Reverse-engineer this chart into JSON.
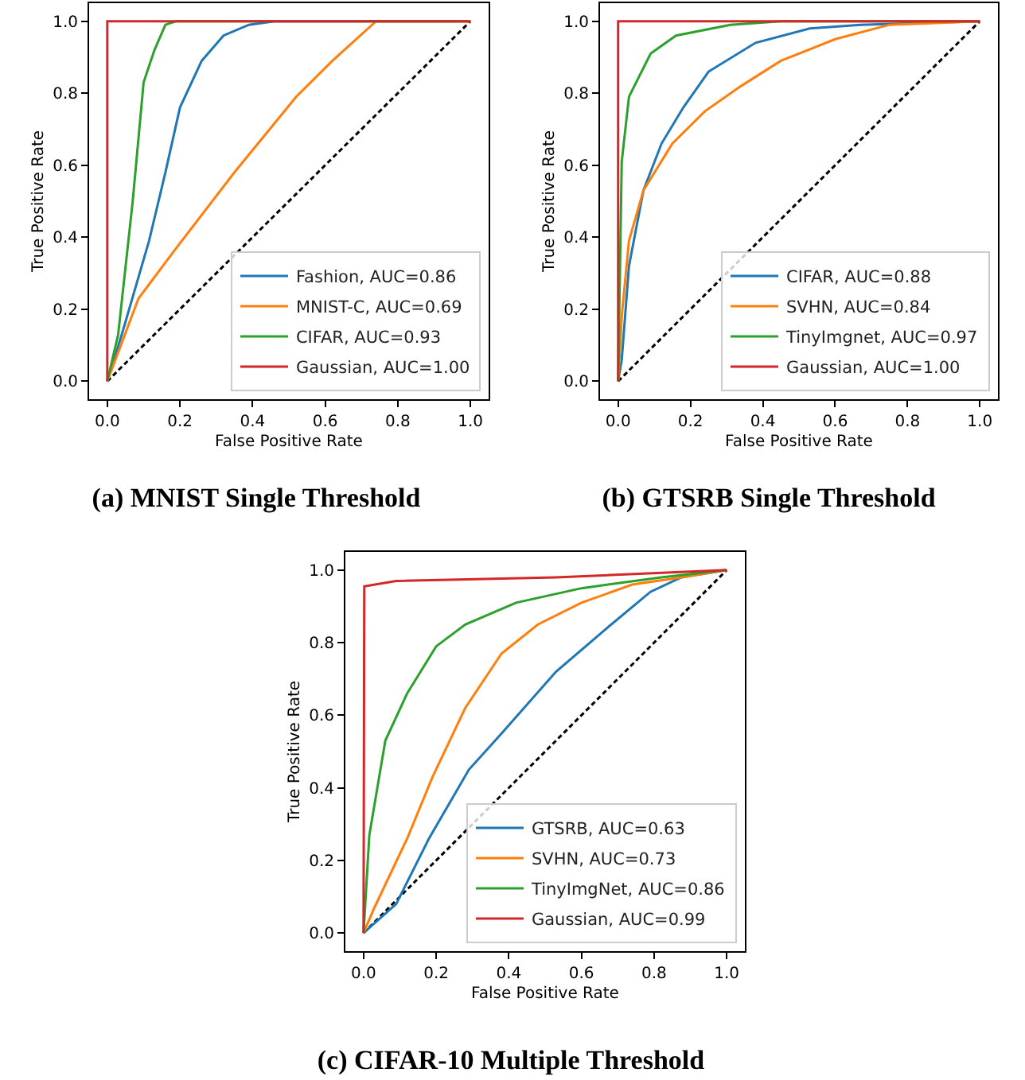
{
  "chart_data": [
    {
      "type": "line",
      "title": "(a) MNIST Single Threshold",
      "xlabel": "False Positive Rate",
      "ylabel": "True Positive Rate",
      "xlim": [
        -0.05,
        1.05
      ],
      "ylim": [
        -0.05,
        1.05
      ],
      "xticks": [
        {
          "value": 0,
          "label": "0.0"
        },
        {
          "value": 0.2,
          "label": "0.2"
        },
        {
          "value": 0.4,
          "label": "0.4"
        },
        {
          "value": 0.6,
          "label": "0.6"
        },
        {
          "value": 0.8,
          "label": "0.8"
        },
        {
          "value": 1,
          "label": "1.0"
        }
      ],
      "yticks": [
        {
          "value": 0,
          "label": "0.0"
        },
        {
          "value": 0.2,
          "label": "0.2"
        },
        {
          "value": 0.4,
          "label": "0.4"
        },
        {
          "value": 0.6,
          "label": "0.6"
        },
        {
          "value": 0.8,
          "label": "0.8"
        },
        {
          "value": 1,
          "label": "1.0"
        }
      ],
      "grid": false,
      "legend": "bottom right",
      "line_style": "solid",
      "marker": "none",
      "series": [
        {
          "color": "#000000",
          "line_style": "dashed",
          "x": [
            0,
            1
          ],
          "values": [
            0,
            1
          ]
        },
        {
          "name": "Fashion, AUC=0.86",
          "color": "#1f77b4",
          "x": [
            0,
            0.04,
            0.115,
            0.16,
            0.2,
            0.26,
            0.32,
            0.39,
            0.46,
            1
          ],
          "values": [
            0,
            0.13,
            0.39,
            0.58,
            0.76,
            0.89,
            0.96,
            0.99,
            1,
            1
          ]
        },
        {
          "name": "MNIST-C, AUC=0.69",
          "color": "#ff7f0e",
          "x": [
            0,
            0.086,
            0.19,
            0.35,
            0.52,
            0.62,
            0.74,
            1
          ],
          "values": [
            0,
            0.23,
            0.37,
            0.58,
            0.79,
            0.89,
            1,
            1
          ]
        },
        {
          "name": "CIFAR, AUC=0.93",
          "color": "#2ca02c",
          "x": [
            0,
            0.03,
            0.07,
            0.1,
            0.13,
            0.16,
            0.19,
            1
          ],
          "values": [
            0,
            0.13,
            0.5,
            0.83,
            0.92,
            0.99,
            1,
            1
          ]
        },
        {
          "name": "Gaussian, AUC=1.00",
          "color": "#d62728",
          "x": [
            0,
            0,
            1
          ],
          "values": [
            0,
            1,
            1
          ]
        }
      ]
    },
    {
      "type": "line",
      "title": "(b) GTSRB Single Threshold",
      "xlabel": "False Positive Rate",
      "ylabel": "True Positive Rate",
      "xlim": [
        -0.05,
        1.05
      ],
      "ylim": [
        -0.05,
        1.05
      ],
      "xticks": [
        {
          "value": 0,
          "label": "0.0"
        },
        {
          "value": 0.2,
          "label": "0.2"
        },
        {
          "value": 0.4,
          "label": "0.4"
        },
        {
          "value": 0.6,
          "label": "0.6"
        },
        {
          "value": 0.8,
          "label": "0.8"
        },
        {
          "value": 1,
          "label": "1.0"
        }
      ],
      "yticks": [
        {
          "value": 0,
          "label": "0.0"
        },
        {
          "value": 0.2,
          "label": "0.2"
        },
        {
          "value": 0.4,
          "label": "0.4"
        },
        {
          "value": 0.6,
          "label": "0.6"
        },
        {
          "value": 0.8,
          "label": "0.8"
        },
        {
          "value": 1,
          "label": "1.0"
        }
      ],
      "grid": false,
      "legend": "bottom right",
      "line_style": "solid",
      "marker": "none",
      "series": [
        {
          "color": "#000000",
          "line_style": "dashed",
          "x": [
            0,
            1
          ],
          "values": [
            0,
            1
          ]
        },
        {
          "name": "CIFAR, AUC=0.88",
          "color": "#1f77b4",
          "x": [
            0,
            0.01,
            0.03,
            0.07,
            0.12,
            0.18,
            0.25,
            0.38,
            0.53,
            0.67,
            1
          ],
          "values": [
            0,
            0.06,
            0.32,
            0.53,
            0.66,
            0.76,
            0.86,
            0.94,
            0.98,
            0.99,
            1
          ]
        },
        {
          "name": "SVHN, AUC=0.84",
          "color": "#ff7f0e",
          "x": [
            0,
            0.01,
            0.03,
            0.07,
            0.15,
            0.24,
            0.34,
            0.45,
            0.6,
            0.75,
            1
          ],
          "values": [
            0,
            0.18,
            0.39,
            0.53,
            0.66,
            0.75,
            0.82,
            0.89,
            0.95,
            0.99,
            1
          ]
        },
        {
          "name": "TinyImgnet, AUC=0.97",
          "color": "#2ca02c",
          "x": [
            0,
            0.01,
            0.03,
            0.09,
            0.16,
            0.31,
            0.45,
            1
          ],
          "values": [
            0,
            0.61,
            0.79,
            0.91,
            0.96,
            0.99,
            1,
            1
          ]
        },
        {
          "name": "Gaussian, AUC=1.00",
          "color": "#d62728",
          "x": [
            0,
            0,
            1
          ],
          "values": [
            0,
            1,
            1
          ]
        }
      ]
    },
    {
      "type": "line",
      "title": "(c) CIFAR-10 Multiple Threshold",
      "xlabel": "False Positive Rate",
      "ylabel": "True Positive Rate",
      "xlim": [
        -0.05,
        1.05
      ],
      "ylim": [
        -0.05,
        1.05
      ],
      "xticks": [
        {
          "value": 0,
          "label": "0.0"
        },
        {
          "value": 0.2,
          "label": "0.2"
        },
        {
          "value": 0.4,
          "label": "0.4"
        },
        {
          "value": 0.6,
          "label": "0.6"
        },
        {
          "value": 0.8,
          "label": "0.8"
        },
        {
          "value": 1,
          "label": "1.0"
        }
      ],
      "yticks": [
        {
          "value": 0,
          "label": "0.0"
        },
        {
          "value": 0.2,
          "label": "0.2"
        },
        {
          "value": 0.4,
          "label": "0.4"
        },
        {
          "value": 0.6,
          "label": "0.6"
        },
        {
          "value": 0.8,
          "label": "0.8"
        },
        {
          "value": 1,
          "label": "1.0"
        }
      ],
      "grid": false,
      "legend": "bottom right",
      "line_style": "solid",
      "marker": "none",
      "series": [
        {
          "color": "#000000",
          "line_style": "dashed",
          "x": [
            0,
            1
          ],
          "values": [
            0,
            1
          ]
        },
        {
          "name": "GTSRB, AUC=0.63",
          "color": "#1f77b4",
          "x": [
            0,
            0.09,
            0.18,
            0.29,
            0.38,
            0.53,
            0.67,
            0.79,
            0.875,
            1
          ],
          "values": [
            0,
            0.08,
            0.26,
            0.45,
            0.55,
            0.72,
            0.84,
            0.94,
            0.98,
            1
          ]
        },
        {
          "name": "SVHN, AUC=0.73",
          "color": "#ff7f0e",
          "x": [
            0,
            0.03,
            0.12,
            0.19,
            0.28,
            0.38,
            0.48,
            0.6,
            0.74,
            0.875,
            1
          ],
          "values": [
            0,
            0.07,
            0.26,
            0.43,
            0.62,
            0.77,
            0.85,
            0.91,
            0.96,
            0.98,
            1
          ]
        },
        {
          "name": "TinyImgNet, AUC=0.86",
          "color": "#2ca02c",
          "x": [
            0,
            0.016,
            0.06,
            0.12,
            0.2,
            0.28,
            0.42,
            0.6,
            0.82,
            1
          ],
          "values": [
            0,
            0.27,
            0.53,
            0.66,
            0.79,
            0.85,
            0.91,
            0.95,
            0.98,
            1
          ]
        },
        {
          "name": "Gaussian, AUC=0.99",
          "color": "#d62728",
          "x": [
            0,
            0.002,
            0.09,
            0.53,
            1
          ],
          "values": [
            0,
            0.955,
            0.97,
            0.98,
            1
          ]
        }
      ]
    }
  ]
}
